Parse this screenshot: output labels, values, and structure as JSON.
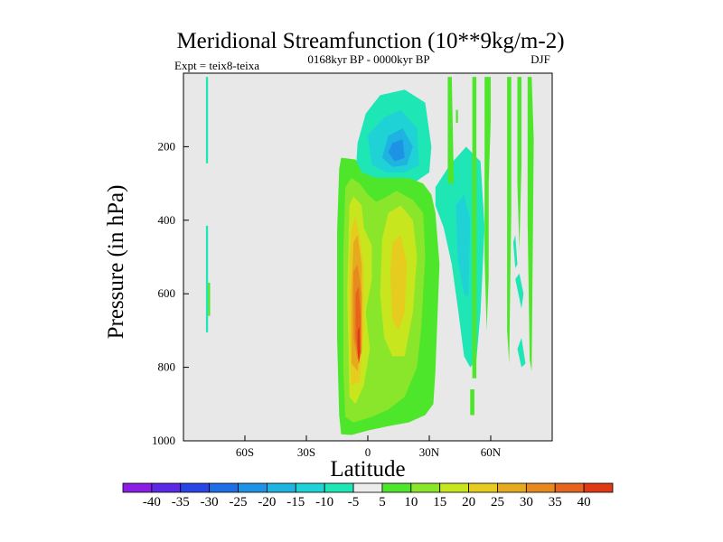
{
  "figure": {
    "title": "Meridional Streamfunction (10**9kg/m-2)",
    "left_label": "Expt = teix8-teixa",
    "center_label": "0168kyr BP - 0000kyr BP",
    "right_label": "DJF"
  },
  "chart_data": {
    "type": "heatmap",
    "title": "Meridional Streamfunction (10**9kg/m-2)",
    "xlabel": "Latitude",
    "ylabel": "Pressure (in hPa)",
    "xlim": [
      -90,
      90
    ],
    "ylim": [
      0,
      1000
    ],
    "y_inverted": true,
    "x_ticks": [
      {
        "value": -60,
        "label": "60S"
      },
      {
        "value": -30,
        "label": "30S"
      },
      {
        "value": 0,
        "label": "0"
      },
      {
        "value": 30,
        "label": "30N"
      },
      {
        "value": 60,
        "label": "60N"
      }
    ],
    "y_ticks": [
      {
        "value": 200,
        "label": "200"
      },
      {
        "value": 400,
        "label": "400"
      },
      {
        "value": 600,
        "label": "600"
      },
      {
        "value": 800,
        "label": "800"
      },
      {
        "value": 1000,
        "label": "1000"
      }
    ],
    "background_color": "#e8e8e8",
    "colorbar": {
      "labels": [
        "-40",
        "-35",
        "-30",
        "-25",
        "-20",
        "-15",
        "-10",
        "-5",
        "5",
        "10",
        "15",
        "20",
        "25",
        "30",
        "35",
        "40"
      ],
      "colors": [
        "#8a1ee6",
        "#5a2ae6",
        "#2a45e6",
        "#1e6fe6",
        "#1e93e6",
        "#1eb3e0",
        "#1ed2d6",
        "#1ee6b4",
        "#ececec",
        "#4ee62a",
        "#8ae62a",
        "#c8e61e",
        "#e6cc1e",
        "#e6aa1e",
        "#e68a1e",
        "#e6641e",
        "#e03a14"
      ]
    },
    "regions": [
      {
        "level": -5,
        "polygon": [
          [
            -79,
            10
          ],
          [
            -78,
            10
          ],
          [
            -78,
            245
          ],
          [
            -79,
            245
          ]
        ]
      },
      {
        "level": -5,
        "polygon": [
          [
            -79,
            415
          ],
          [
            -78,
            415
          ],
          [
            -78,
            705
          ],
          [
            -79,
            705
          ]
        ]
      },
      {
        "level": -5,
        "polygon": [
          [
            6,
            60
          ],
          [
            18,
            45
          ],
          [
            28,
            80
          ],
          [
            31,
            200
          ],
          [
            30,
            270
          ],
          [
            22,
            300
          ],
          [
            14,
            310
          ],
          [
            4,
            305
          ],
          [
            -6,
            275
          ],
          [
            -5,
            190
          ],
          [
            -1,
            110
          ]
        ]
      },
      {
        "level": -10,
        "polygon": [
          [
            8,
            120
          ],
          [
            16,
            100
          ],
          [
            24,
            150
          ],
          [
            25,
            250
          ],
          [
            18,
            270
          ],
          [
            9,
            270
          ],
          [
            2,
            250
          ],
          [
            0,
            170
          ]
        ]
      },
      {
        "level": -15,
        "polygon": [
          [
            10,
            170
          ],
          [
            17,
            150
          ],
          [
            22,
            200
          ],
          [
            19,
            250
          ],
          [
            12,
            255
          ],
          [
            7,
            230
          ]
        ]
      },
      {
        "level": -20,
        "polygon": [
          [
            12,
            190
          ],
          [
            17,
            180
          ],
          [
            18,
            230
          ],
          [
            13,
            240
          ],
          [
            10,
            215
          ]
        ]
      },
      {
        "level": -5,
        "polygon": [
          [
            33,
            310
          ],
          [
            40,
            250
          ],
          [
            48,
            200
          ],
          [
            55,
            240
          ],
          [
            57,
            420
          ],
          [
            55,
            650
          ],
          [
            53,
            780
          ],
          [
            50,
            800
          ],
          [
            47,
            770
          ],
          [
            44,
            640
          ],
          [
            41,
            520
          ],
          [
            37,
            420
          ],
          [
            33,
            360
          ]
        ]
      },
      {
        "level": -10,
        "polygon": [
          [
            43,
            360
          ],
          [
            47,
            330
          ],
          [
            50,
            400
          ],
          [
            49,
            610
          ],
          [
            47,
            600
          ],
          [
            44,
            510
          ]
        ]
      },
      {
        "level": -5,
        "polygon": [
          [
            71,
            460
          ],
          [
            72,
            440
          ],
          [
            73,
            520
          ],
          [
            72,
            530
          ]
        ]
      },
      {
        "level": -5,
        "polygon": [
          [
            72,
            560
          ],
          [
            74,
            545
          ],
          [
            76,
            600
          ],
          [
            75,
            640
          ]
        ]
      },
      {
        "level": -5,
        "polygon": [
          [
            73,
            750
          ],
          [
            75,
            720
          ],
          [
            77,
            790
          ],
          [
            75,
            800
          ]
        ]
      },
      {
        "level": 5,
        "polygon": [
          [
            -78,
            570
          ],
          [
            -77,
            570
          ],
          [
            -77,
            660
          ],
          [
            -78,
            660
          ]
        ]
      },
      {
        "level": 5,
        "polygon": [
          [
            -14,
            260
          ],
          [
            -13,
            230
          ],
          [
            -6,
            235
          ],
          [
            -3,
            270
          ],
          [
            4,
            285
          ],
          [
            20,
            285
          ],
          [
            27,
            300
          ],
          [
            31,
            330
          ],
          [
            33,
            380
          ],
          [
            35,
            520
          ],
          [
            34,
            660
          ],
          [
            33,
            810
          ],
          [
            32,
            900
          ],
          [
            28,
            930
          ],
          [
            20,
            950
          ],
          [
            10,
            960
          ],
          [
            0,
            972
          ],
          [
            -8,
            984
          ],
          [
            -13,
            982
          ],
          [
            -14,
            930
          ],
          [
            -15,
            720
          ],
          [
            -15,
            430
          ]
        ]
      },
      {
        "level": 5,
        "polygon": [
          [
            39,
            10
          ],
          [
            41,
            10
          ],
          [
            42,
            300
          ],
          [
            39,
            300
          ]
        ]
      },
      {
        "level": 5,
        "polygon": [
          [
            51,
            10
          ],
          [
            53,
            10
          ],
          [
            53,
            830
          ],
          [
            51,
            830
          ]
        ]
      },
      {
        "level": 5,
        "polygon": [
          [
            57,
            10
          ],
          [
            60,
            10
          ],
          [
            60,
            130
          ],
          [
            59,
            300
          ],
          [
            59,
            560
          ],
          [
            58,
            700
          ],
          [
            57,
            500
          ],
          [
            57,
            200
          ]
        ]
      },
      {
        "level": 5,
        "polygon": [
          [
            50,
            860
          ],
          [
            52,
            860
          ],
          [
            52,
            930
          ],
          [
            50,
            930
          ]
        ]
      },
      {
        "level": 5,
        "polygon": [
          [
            68,
            10
          ],
          [
            70,
            10
          ],
          [
            70,
            380
          ],
          [
            69,
            790
          ],
          [
            68,
            700
          ],
          [
            68,
            300
          ]
        ]
      },
      {
        "level": 5,
        "polygon": [
          [
            73,
            10
          ],
          [
            75,
            10
          ],
          [
            75,
            250
          ],
          [
            74,
            480
          ],
          [
            73,
            300
          ]
        ]
      },
      {
        "level": 5,
        "polygon": [
          [
            78,
            10
          ],
          [
            80,
            10
          ],
          [
            81,
            180
          ],
          [
            80,
            810
          ],
          [
            79,
            780
          ],
          [
            78,
            400
          ]
        ]
      },
      {
        "level": 5,
        "polygon": [
          [
            43,
            100
          ],
          [
            44,
            100
          ],
          [
            44,
            135
          ],
          [
            43,
            135
          ]
        ]
      },
      {
        "level": 10,
        "polygon": [
          [
            -11,
            310
          ],
          [
            -8,
            285
          ],
          [
            -4,
            300
          ],
          [
            0,
            330
          ],
          [
            4,
            350
          ],
          [
            8,
            340
          ],
          [
            14,
            320
          ],
          [
            22,
            345
          ],
          [
            27,
            380
          ],
          [
            28,
            500
          ],
          [
            26,
            700
          ],
          [
            24,
            800
          ],
          [
            18,
            880
          ],
          [
            10,
            915
          ],
          [
            2,
            935
          ],
          [
            -7,
            950
          ],
          [
            -11,
            935
          ],
          [
            -12,
            800
          ],
          [
            -12,
            500
          ]
        ]
      },
      {
        "level": 15,
        "polygon": [
          [
            -9,
            360
          ],
          [
            -7,
            335
          ],
          [
            -3,
            360
          ],
          [
            -2,
            420
          ],
          [
            2,
            470
          ],
          [
            2,
            560
          ],
          [
            -1,
            650
          ],
          [
            1,
            750
          ],
          [
            -2,
            850
          ],
          [
            -6,
            900
          ],
          [
            -9,
            880
          ],
          [
            -10,
            600
          ]
        ]
      },
      {
        "level": 15,
        "polygon": [
          [
            10,
            380
          ],
          [
            16,
            360
          ],
          [
            22,
            400
          ],
          [
            24,
            500
          ],
          [
            22,
            650
          ],
          [
            18,
            770
          ],
          [
            12,
            770
          ],
          [
            8,
            720
          ],
          [
            6,
            600
          ],
          [
            7,
            450
          ]
        ]
      },
      {
        "level": 20,
        "polygon": [
          [
            -8,
            420
          ],
          [
            -6,
            390
          ],
          [
            -4,
            440
          ],
          [
            -2,
            520
          ],
          [
            -2,
            700
          ],
          [
            -4,
            840
          ],
          [
            -8,
            850
          ],
          [
            -9,
            700
          ],
          [
            -9,
            520
          ]
        ]
      },
      {
        "level": 20,
        "polygon": [
          [
            12,
            460
          ],
          [
            16,
            440
          ],
          [
            19,
            520
          ],
          [
            18,
            650
          ],
          [
            15,
            700
          ],
          [
            12,
            670
          ],
          [
            11,
            550
          ]
        ]
      },
      {
        "level": 25,
        "polygon": [
          [
            -7,
            460
          ],
          [
            -5,
            440
          ],
          [
            -3,
            520
          ],
          [
            -3,
            720
          ],
          [
            -5,
            810
          ],
          [
            -8,
            790
          ],
          [
            -8,
            600
          ]
        ]
      },
      {
        "level": 30,
        "polygon": [
          [
            -7,
            540
          ],
          [
            -5,
            520
          ],
          [
            -3,
            600
          ],
          [
            -3,
            760
          ],
          [
            -5,
            780
          ],
          [
            -7,
            720
          ]
        ]
      },
      {
        "level": 35,
        "polygon": [
          [
            -6,
            600
          ],
          [
            -4.5,
            580
          ],
          [
            -3.5,
            660
          ],
          [
            -3.5,
            760
          ],
          [
            -4.5,
            775
          ],
          [
            -6,
            720
          ]
        ]
      },
      {
        "level": 40,
        "polygon": [
          [
            -5,
            700
          ],
          [
            -4,
            690
          ],
          [
            -3.8,
            770
          ],
          [
            -4.4,
            790
          ],
          [
            -5,
            760
          ]
        ]
      }
    ]
  }
}
